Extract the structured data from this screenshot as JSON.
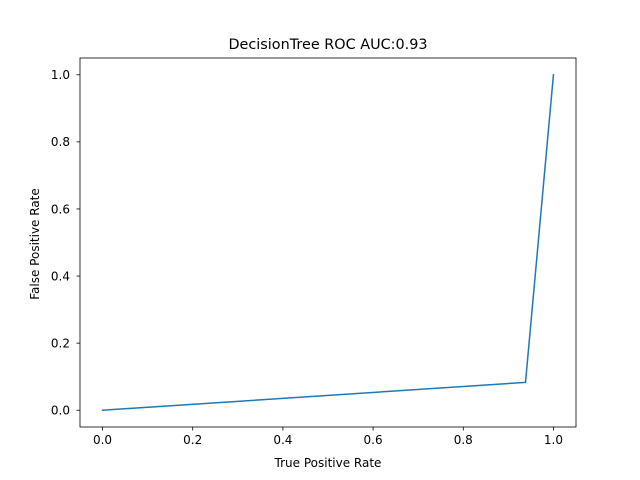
{
  "chart_data": {
    "type": "line",
    "title": "DecisionTree ROC AUC:0.93",
    "xlabel": "True Positive Rate",
    "ylabel": "False Positive Rate",
    "xlim": [
      -0.05,
      1.05
    ],
    "ylim": [
      -0.05,
      1.05
    ],
    "xticks": [
      0.0,
      0.2,
      0.4,
      0.6,
      0.8,
      1.0
    ],
    "yticks": [
      0.0,
      0.2,
      0.4,
      0.6,
      0.8,
      1.0
    ],
    "xtick_labels": [
      "0.0",
      "0.2",
      "0.4",
      "0.6",
      "0.8",
      "1.0"
    ],
    "ytick_labels": [
      "0.0",
      "0.2",
      "0.4",
      "0.6",
      "0.8",
      "1.0"
    ],
    "grid": false,
    "legend": false,
    "series": [
      {
        "color": "#1f77b4",
        "x": [
          0.0,
          0.938,
          1.0
        ],
        "y": [
          0.0,
          0.083,
          1.0
        ]
      }
    ]
  }
}
